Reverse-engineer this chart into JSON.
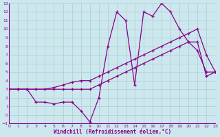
{
  "xlabel": "Windchill (Refroidissement éolien,°C)",
  "bg_color": "#cce8ee",
  "grid_color": "#aacccc",
  "line_color": "#880088",
  "xlim": [
    0,
    23
  ],
  "ylim": [
    -1,
    13
  ],
  "xticks": [
    0,
    1,
    2,
    3,
    4,
    5,
    6,
    7,
    8,
    9,
    10,
    11,
    12,
    13,
    14,
    15,
    16,
    17,
    18,
    19,
    20,
    21,
    22,
    23
  ],
  "yticks": [
    -1,
    0,
    1,
    2,
    3,
    4,
    5,
    6,
    7,
    8,
    9,
    10,
    11,
    12,
    13
  ],
  "line1_x": [
    0,
    1,
    2,
    3,
    4,
    5,
    6,
    7,
    8,
    9,
    10,
    11,
    12,
    13,
    14,
    15,
    16,
    17,
    18,
    19,
    20,
    21,
    22,
    23
  ],
  "line1_y": [
    3.0,
    3.0,
    3.0,
    3.0,
    3.0,
    3.0,
    3.0,
    3.0,
    3.0,
    3.0,
    3.5,
    4.0,
    4.5,
    5.0,
    5.5,
    6.0,
    6.5,
    7.0,
    7.5,
    8.0,
    8.5,
    8.5,
    4.5,
    5.0
  ],
  "line2_x": [
    0,
    1,
    2,
    3,
    4,
    5,
    6,
    7,
    8,
    9,
    10,
    11,
    12,
    13,
    14,
    15,
    16,
    17,
    18,
    19,
    20,
    21,
    22,
    23
  ],
  "line2_y": [
    3.0,
    3.0,
    3.0,
    3.0,
    3.0,
    3.2,
    3.5,
    3.8,
    4.0,
    4.0,
    4.5,
    5.0,
    5.5,
    6.0,
    6.5,
    7.0,
    7.5,
    8.0,
    8.5,
    9.0,
    9.5,
    10.0,
    7.0,
    5.0
  ],
  "line3_x": [
    0,
    1,
    2,
    3,
    4,
    5,
    6,
    7,
    8,
    9,
    10,
    11,
    12,
    13,
    14,
    15,
    16,
    17,
    18,
    19,
    20,
    21,
    22,
    23
  ],
  "line3_y": [
    3.0,
    3.0,
    3.0,
    1.5,
    1.5,
    1.3,
    1.5,
    1.5,
    0.5,
    -0.8,
    2.0,
    8.0,
    12.0,
    11.0,
    3.5,
    12.0,
    11.5,
    13.0,
    12.0,
    10.0,
    8.5,
    7.5,
    5.0,
    5.0
  ]
}
